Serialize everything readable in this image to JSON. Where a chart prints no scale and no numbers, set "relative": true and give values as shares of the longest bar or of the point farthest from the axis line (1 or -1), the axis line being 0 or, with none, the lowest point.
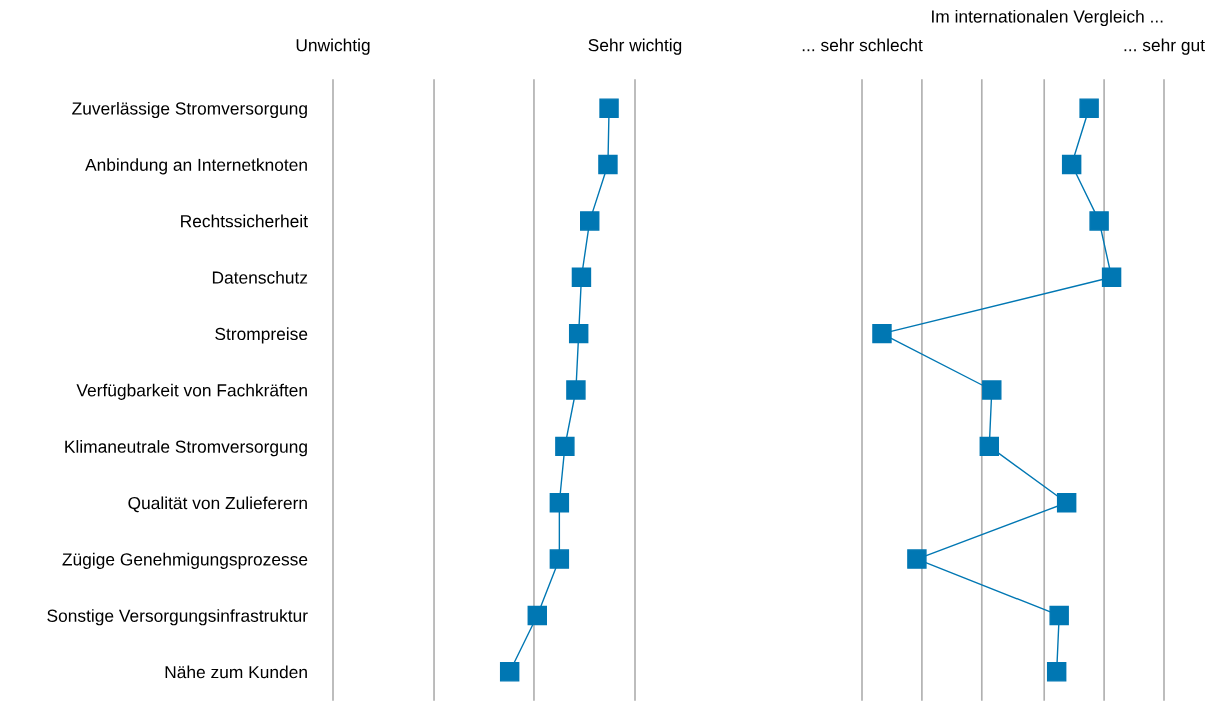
{
  "chart_data": [
    {
      "type": "line",
      "categories": [
        "Zuverlässige Stromversorgung",
        "Anbindung an Internetknoten",
        "Rechtssicherheit",
        "Datenschutz",
        "Strompreise",
        "Verfügbarkeit von Fachkräften",
        "Klimaneutrale Stromversorgung",
        "Qualität von Zulieferern",
        "Zügige Genehmigungsprozesse",
        "Sonstige Versorgungsinfrastruktur",
        "Nähe zum Kunden"
      ],
      "orientation": "horizontal",
      "relative": true,
      "series": [
        {
          "color": "#0077b3",
          "values": [
            1,
            0.996,
            0.93,
            0.9,
            0.89,
            0.88,
            0.84,
            0.82,
            0.82,
            0.74,
            0.64
          ]
        }
      ],
      "ref_lines": [
        {
          "axis": "x",
          "value": 0,
          "label": "Unwichtig",
          "color": "#b0b0b0"
        },
        {
          "axis": "x",
          "value": 0.366,
          "color": "#b0b0b0"
        },
        {
          "axis": "x",
          "value": 0.728,
          "color": "#b0b0b0"
        },
        {
          "axis": "x",
          "value": 1.094,
          "label": "Sehr wichtig",
          "color": "#b0b0b0"
        }
      ],
      "marker": "square",
      "line_style": "solid",
      "tick_labels": "y"
    },
    {
      "type": "line",
      "title": "Im internationalen Vergleich ...",
      "categories": [
        null,
        null,
        null,
        null,
        null,
        null,
        null,
        null,
        null,
        null,
        null
      ],
      "orientation": "horizontal",
      "relative": true,
      "series": [
        {
          "color": "#0077b3",
          "values": [
            0.91,
            0.84,
            0.95,
            1,
            0.08,
            0.52,
            0.51,
            0.82,
            0.22,
            0.79,
            0.78
          ]
        }
      ],
      "ref_lines": [
        {
          "axis": "x",
          "value": 0,
          "label": "... sehr schlecht",
          "color": "#b0b0b0"
        },
        {
          "axis": "x",
          "value": 0.24,
          "color": "#b0b0b0"
        },
        {
          "axis": "x",
          "value": 0.48,
          "color": "#b0b0b0"
        },
        {
          "axis": "x",
          "value": 0.73,
          "color": "#b0b0b0"
        },
        {
          "axis": "x",
          "value": 0.97,
          "color": "#b0b0b0"
        },
        {
          "axis": "x",
          "value": 1.21,
          "label": "... sehr gut",
          "color": "#b0b0b0"
        }
      ],
      "marker": "square",
      "line_style": "solid",
      "tick_labels": false
    }
  ]
}
